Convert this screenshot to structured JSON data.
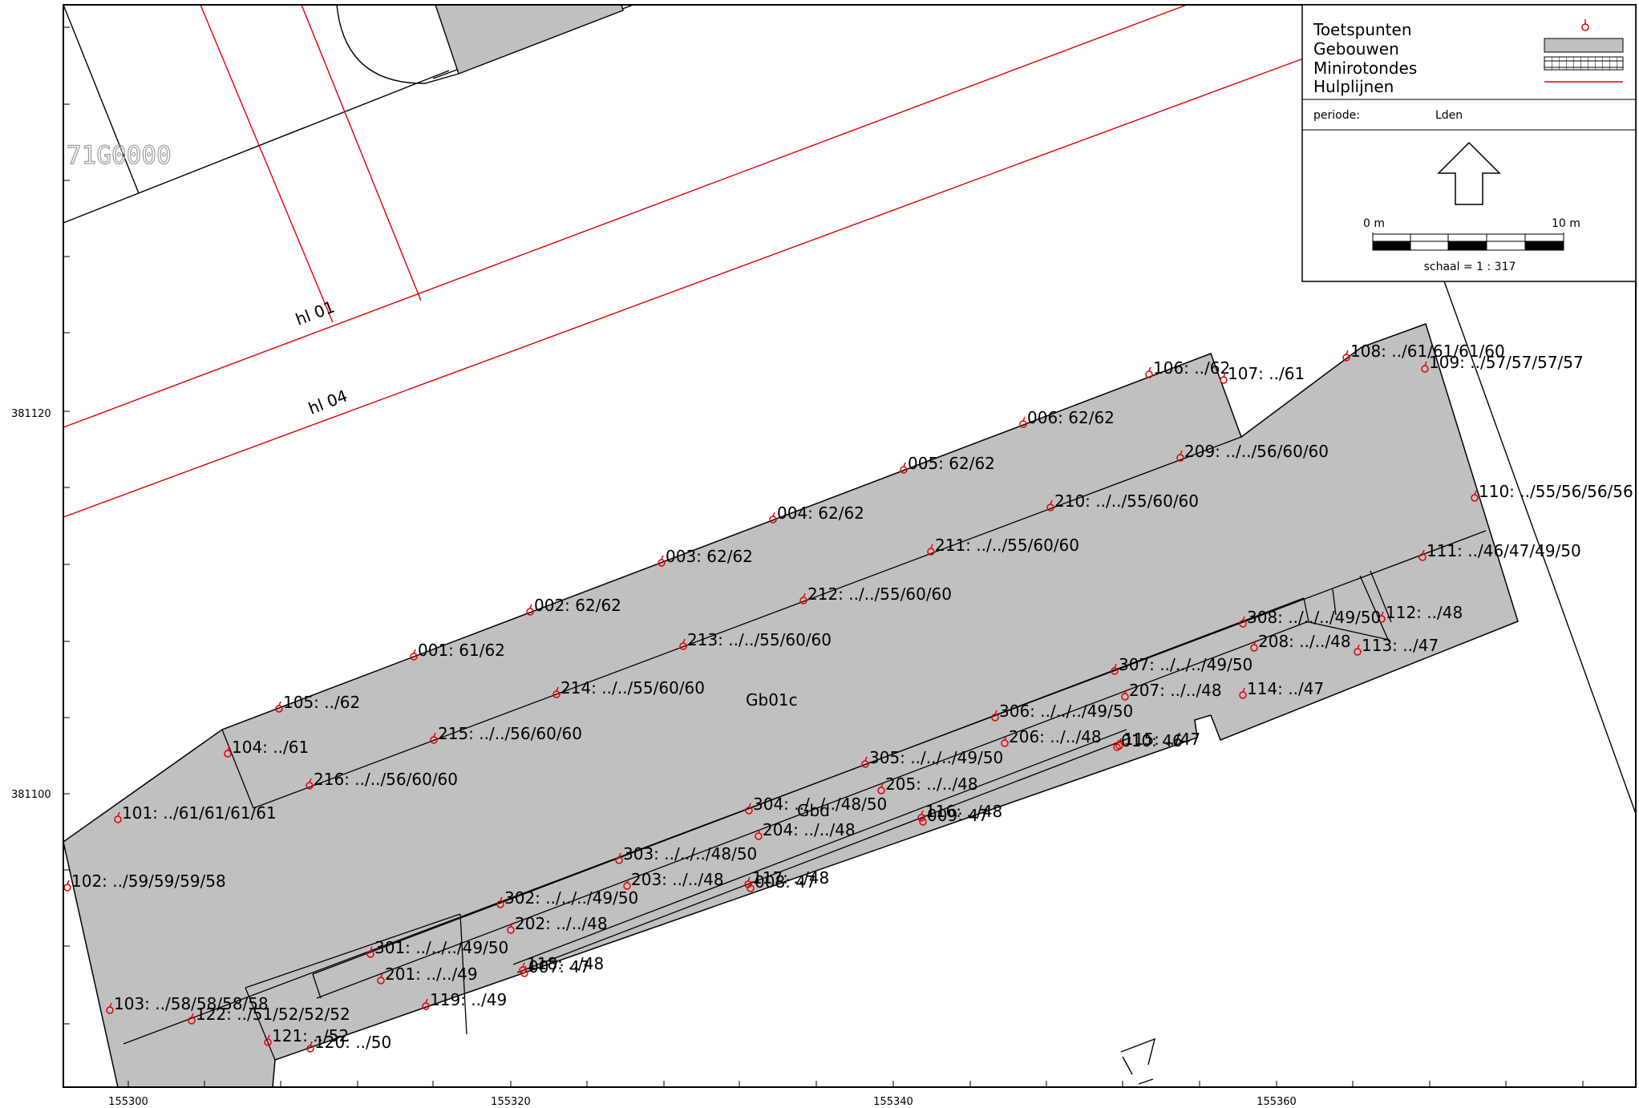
{
  "map": {
    "parcel_label": "71G0000",
    "building_label": "Gb01c",
    "overlap_label": "Gbd",
    "helper_lines": [
      "hl 01",
      "hl 04"
    ],
    "axes": {
      "x_ticks": [
        "155300",
        "155320",
        "155340",
        "155360"
      ],
      "y_ticks": [
        "381120",
        "381100"
      ]
    }
  },
  "legend": {
    "items": [
      {
        "label": "Toetspunten",
        "symbol": "point-icon"
      },
      {
        "label": "Gebouwen",
        "symbol": "gray-fill-swatch"
      },
      {
        "label": "Minirotondes",
        "symbol": "hatched-swatch"
      },
      {
        "label": "Hulplijnen",
        "symbol": "red-line-swatch"
      }
    ],
    "periode_label": "periode:",
    "periode_value": "Lden",
    "scale_start": "0 m",
    "scale_end": "10 m",
    "scale_text": "schaal = 1 : 317"
  },
  "colors": {
    "building_fill": "#c0c0c0",
    "helper_line": "#e00000",
    "point_marker": "#e00000"
  },
  "points": [
    {
      "label": "001: 61/62"
    },
    {
      "label": "002: 62/62"
    },
    {
      "label": "003: 62/62"
    },
    {
      "label": "004: 62/62"
    },
    {
      "label": "005: 62/62"
    },
    {
      "label": "006: 62/62"
    },
    {
      "label": "007: 47"
    },
    {
      "label": "008: 47"
    },
    {
      "label": "009: 47"
    },
    {
      "label": "010: 46"
    },
    {
      "label": "101: ../61/61/61/61"
    },
    {
      "label": "102: ../59/59/59/58"
    },
    {
      "label": "103: ../58/58/58/58"
    },
    {
      "label": "104: ../61"
    },
    {
      "label": "105: ../62"
    },
    {
      "label": "106: ../62"
    },
    {
      "label": "107: ../61"
    },
    {
      "label": "108: ../61/61/61/60"
    },
    {
      "label": "109: ../57/57/57/57"
    },
    {
      "label": "110: ../55/56/56/56"
    },
    {
      "label": "111: ../46/47/49/50"
    },
    {
      "label": "112: ../48"
    },
    {
      "label": "113: ../47"
    },
    {
      "label": "114: ../47"
    },
    {
      "label": "115: ../47"
    },
    {
      "label": "116: ../48"
    },
    {
      "label": "117: ../48"
    },
    {
      "label": "118: ../48"
    },
    {
      "label": "119: ../49"
    },
    {
      "label": "120: ../50"
    },
    {
      "label": "121: ../52"
    },
    {
      "label": "122: ../51/52/52/52"
    },
    {
      "label": "201: ../../49"
    },
    {
      "label": "202: ../../48"
    },
    {
      "label": "203: ../../48"
    },
    {
      "label": "204: ../../48"
    },
    {
      "label": "205: ../../48"
    },
    {
      "label": "206: ../../48"
    },
    {
      "label": "207: ../../48"
    },
    {
      "label": "208: ../../48"
    },
    {
      "label": "209: ../../56/60/60"
    },
    {
      "label": "210: ../../55/60/60"
    },
    {
      "label": "211: ../../55/60/60"
    },
    {
      "label": "212: ../../55/60/60"
    },
    {
      "label": "213: ../../55/60/60"
    },
    {
      "label": "214: ../../55/60/60"
    },
    {
      "label": "215: ../../56/60/60"
    },
    {
      "label": "216: ../../56/60/60"
    },
    {
      "label": "301: ../../../49/50"
    },
    {
      "label": "302: ../../../49/50"
    },
    {
      "label": "303: ../../../48/50"
    },
    {
      "label": "304: ../../../48/50"
    },
    {
      "label": "305: ../../../49/50"
    },
    {
      "label": "306: ../../../49/50"
    },
    {
      "label": "307: ../../../49/50"
    },
    {
      "label": "308: ../../../49/50"
    }
  ]
}
